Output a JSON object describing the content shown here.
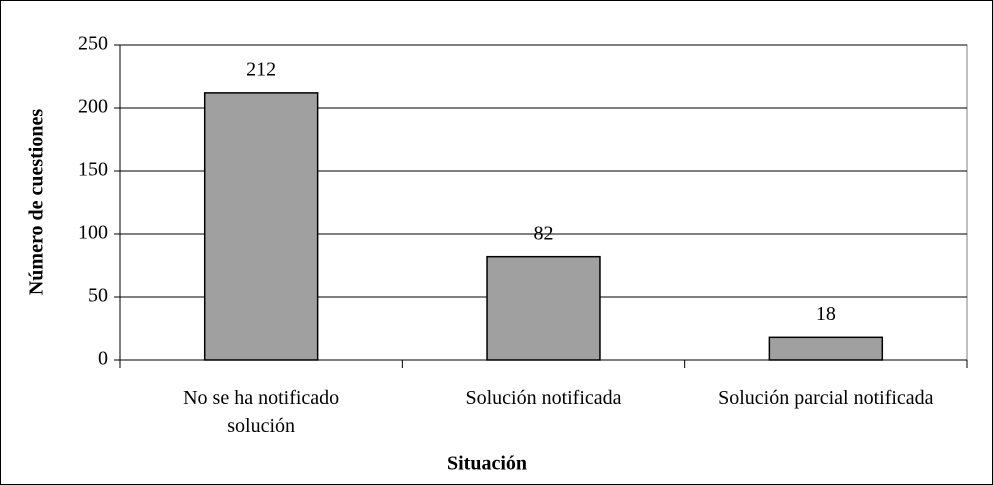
{
  "chart_data": {
    "type": "bar",
    "categories": [
      "No se ha notificado solución",
      "Solución notificada",
      "Solución parcial notificada"
    ],
    "values": [
      212,
      82,
      18
    ],
    "color": "#a0a0a0",
    "xlabel": "Situación",
    "ylabel": "Número de cuestiones",
    "ylim": [
      0,
      250
    ],
    "yticks": [
      0,
      50,
      100,
      150,
      200,
      250
    ],
    "grid": true
  }
}
